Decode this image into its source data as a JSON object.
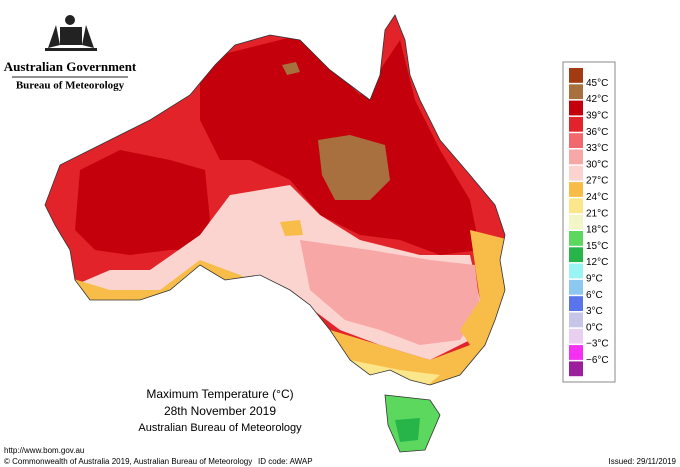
{
  "header": {
    "title": "Australian Government",
    "subtitle": "Bureau of Meteorology"
  },
  "legend": {
    "colors": [
      "#a23a12",
      "#a8703f",
      "#c4000c",
      "#e2242a",
      "#f1696f",
      "#f7a7a6",
      "#fbd3cf",
      "#f8bd49",
      "#fbe68c",
      "#f3f7c7",
      "#5cd85f",
      "#27b54a",
      "#9af4f4",
      "#8cc8f2",
      "#5a74ec",
      "#c8c6e8",
      "#ead0f0",
      "#f430f2",
      "#9c1f9c"
    ],
    "labels": [
      "45°C",
      "42°C",
      "39°C",
      "36°C",
      "33°C",
      "30°C",
      "27°C",
      "24°C",
      "21°C",
      "18°C",
      "15°C",
      "12°C",
      "9°C",
      "6°C",
      "3°C",
      "0°C",
      "−3°C",
      "−6°C"
    ]
  },
  "caption": {
    "title": "Maximum Temperature (°C)",
    "date": "28th November 2019",
    "source": "Australian Bureau of Meteorology"
  },
  "footer": {
    "url": "http://www.bom.gov.au",
    "copyright": "© Commonwealth of Australia 2019, Australian Bureau of Meteorology",
    "id_code": "ID code: AWAP",
    "issued": "Issued: 29/11/2019"
  }
}
